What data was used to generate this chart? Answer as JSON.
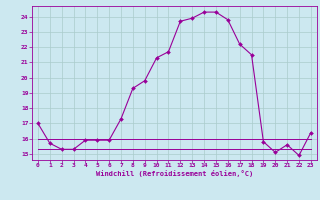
{
  "xlabel": "Windchill (Refroidissement éolien,°C)",
  "bg_color": "#cce8f0",
  "grid_color": "#aacccc",
  "line_color": "#990099",
  "hours": [
    0,
    1,
    2,
    3,
    4,
    5,
    6,
    7,
    8,
    9,
    10,
    11,
    12,
    13,
    14,
    15,
    16,
    17,
    18,
    19,
    20,
    21,
    22,
    23
  ],
  "temp": [
    17.0,
    15.7,
    15.3,
    15.3,
    15.9,
    15.9,
    15.9,
    17.3,
    19.3,
    19.8,
    21.3,
    21.7,
    23.7,
    23.9,
    24.3,
    24.3,
    23.8,
    22.2,
    21.5,
    15.8,
    15.1,
    15.6,
    14.9,
    16.4
  ],
  "flat_line1": [
    16.0,
    16.0,
    16.0,
    16.0,
    16.0,
    16.0,
    16.0,
    16.0,
    16.0,
    16.0,
    16.0,
    16.0,
    16.0,
    16.0,
    16.0,
    16.0,
    16.0,
    16.0,
    16.0,
    16.0,
    16.0,
    16.0,
    16.0,
    16.0
  ],
  "flat_line2": [
    15.3,
    15.3,
    15.3,
    15.3,
    15.3,
    15.3,
    15.3,
    15.3,
    15.3,
    15.3,
    15.3,
    15.3,
    15.3,
    15.3,
    15.3,
    15.3,
    15.3,
    15.3,
    15.3,
    15.3,
    15.3,
    15.3,
    15.3,
    15.3
  ],
  "ylim": [
    14.6,
    24.7
  ],
  "yticks": [
    15,
    16,
    17,
    18,
    19,
    20,
    21,
    22,
    23,
    24
  ],
  "xticks": [
    0,
    1,
    2,
    3,
    4,
    5,
    6,
    7,
    8,
    9,
    10,
    11,
    12,
    13,
    14,
    15,
    16,
    17,
    18,
    19,
    20,
    21,
    22,
    23
  ]
}
